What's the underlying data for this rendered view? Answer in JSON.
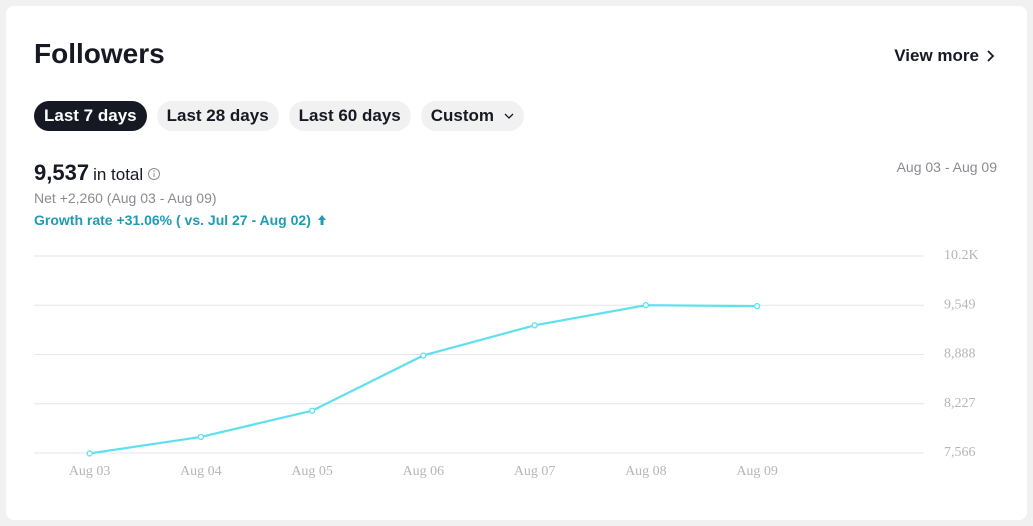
{
  "header": {
    "title": "Followers",
    "link": "View more"
  },
  "tabs": [
    {
      "label": "Last 7 days",
      "selected": true
    },
    {
      "label": "Last 28 days",
      "selected": false
    },
    {
      "label": "Last 60 days",
      "selected": false
    },
    {
      "label": "Custom",
      "selected": false
    }
  ],
  "summary": {
    "total": "9,537",
    "total_unit": "in total",
    "net": "Net +2,260 (Aug 03 - Aug 09)",
    "growth": "Growth rate +31.06% ( vs. Jul 27 - Aug 02)",
    "range": "Aug 03 - Aug 09"
  },
  "chart_data": {
    "type": "line",
    "categories": [
      "Aug 03",
      "Aug 04",
      "Aug 05",
      "Aug 06",
      "Aug 07",
      "Aug 08",
      "Aug 09"
    ],
    "values": [
      7560,
      7782,
      8133,
      8875,
      9280,
      9550,
      9537
    ],
    "color": "#5ee0ee",
    "ylim": [
      7566,
      10210
    ],
    "yticks": [
      {
        "value": 7566,
        "label": "7,566"
      },
      {
        "value": 8227,
        "label": "8,227"
      },
      {
        "value": 8888,
        "label": "8,888"
      },
      {
        "value": 9549,
        "label": "9,549"
      },
      {
        "value": 10210,
        "label": "10.2K"
      }
    ],
    "grid": true
  }
}
